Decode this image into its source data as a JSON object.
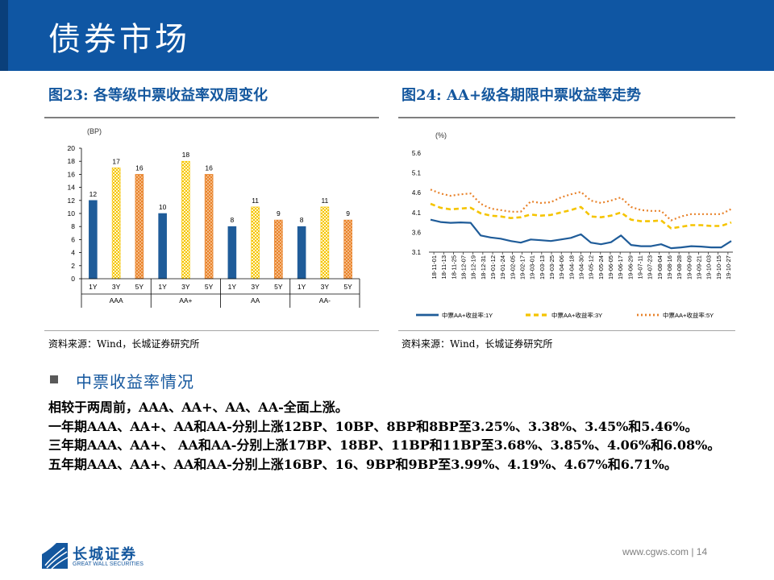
{
  "header": {
    "title": "债券市场"
  },
  "fig23": {
    "title": "图23:  各等级中票收益率双周变化",
    "source": "资料来源：Wind，长城证券研究所"
  },
  "fig24": {
    "title": "图24:   AA+级各期限中票收益率走势",
    "source": "资料来源：Wind，长城证券研究所"
  },
  "section": {
    "heading": "中票收益率情况"
  },
  "body": {
    "p1": "相较于两周前，AAA、AA+、AA、AA-全面上涨。",
    "p2": "一年期AAA、AA+、AA和AA-分别上涨12BP、10BP、8BP和8BP至3.25%、3.38%、3.45%和5.46%。",
    "p3": "三年期AAA、AA+、 AA和AA-分别上涨17BP、18BP、11BP和11BP至3.68%、3.85%、4.06%和6.08%。",
    "p4": "五年期AAA、AA+、AA和AA-分别上涨16BP、16、9BP和9BP至3.99%、4.19%、4.67%和6.71%。"
  },
  "footer": {
    "url": "www.cgws.com  |  14",
    "logo": "长城证券",
    "logo_sub": "GREAT WALL SECURITIES"
  },
  "colors": {
    "brand": "#0f56a3",
    "one_year": "#1f5c99",
    "three_year": "#f5c400",
    "five_year": "#e8822a"
  },
  "chart_data": [
    {
      "type": "bar",
      "unit_label": "(BP)",
      "ylim": [
        0,
        20
      ],
      "yticks": [
        0,
        2,
        4,
        6,
        8,
        10,
        12,
        14,
        16,
        18,
        20
      ],
      "groups": [
        "AAA",
        "AA+",
        "AA",
        "AA-"
      ],
      "categories": [
        "1Y",
        "3Y",
        "5Y"
      ],
      "series": [
        {
          "group": "AAA",
          "values": [
            12,
            17,
            16
          ]
        },
        {
          "group": "AA+",
          "values": [
            10,
            18,
            16
          ]
        },
        {
          "group": "AA",
          "values": [
            8,
            11,
            9
          ]
        },
        {
          "group": "AA-",
          "values": [
            8,
            11,
            9
          ]
        }
      ]
    },
    {
      "type": "line",
      "unit_label": "(%)",
      "ylim": [
        3.1,
        5.6
      ],
      "yticks": [
        "3.1",
        "3.6",
        "4.1",
        "4.6",
        "5.1",
        "5.6"
      ],
      "x": [
        "18-11-01",
        "18-11-13",
        "18-11-25",
        "18-12-07",
        "18-12-19",
        "18-12-31",
        "19-01-12",
        "19-01-24",
        "19-02-05",
        "19-02-17",
        "19-03-01",
        "19-03-13",
        "19-03-25",
        "19-04-06",
        "19-04-18",
        "19-04-30",
        "19-05-12",
        "19-05-24",
        "19-06-05",
        "19-06-17",
        "19-06-29",
        "19-07-11",
        "19-07-23",
        "19-08-04",
        "19-08-16",
        "19-08-28",
        "19-09-09",
        "19-09-21",
        "19-10-03",
        "19-10-15",
        "19-10-27"
      ],
      "series": [
        {
          "name": "中票AA+收益率:1Y",
          "values": [
            3.92,
            3.86,
            3.84,
            3.85,
            3.84,
            3.52,
            3.47,
            3.44,
            3.38,
            3.34,
            3.42,
            3.4,
            3.38,
            3.42,
            3.46,
            3.55,
            3.34,
            3.3,
            3.35,
            3.52,
            3.28,
            3.25,
            3.25,
            3.3,
            3.2,
            3.22,
            3.25,
            3.24,
            3.22,
            3.22,
            3.38
          ]
        },
        {
          "name": "中票AA+收益率:3Y",
          "values": [
            4.32,
            4.22,
            4.18,
            4.2,
            4.22,
            4.08,
            4.02,
            4.0,
            3.96,
            3.98,
            4.05,
            4.02,
            4.04,
            4.1,
            4.16,
            4.24,
            4.0,
            3.98,
            4.02,
            4.1,
            3.92,
            3.88,
            3.88,
            3.9,
            3.7,
            3.74,
            3.78,
            3.78,
            3.76,
            3.76,
            3.85
          ]
        },
        {
          "name": "中票AA+收益率:5Y",
          "values": [
            4.68,
            4.58,
            4.52,
            4.56,
            4.58,
            4.32,
            4.2,
            4.16,
            4.12,
            4.12,
            4.38,
            4.34,
            4.36,
            4.48,
            4.56,
            4.62,
            4.4,
            4.34,
            4.4,
            4.48,
            4.24,
            4.16,
            4.14,
            4.14,
            3.9,
            4.0,
            4.06,
            4.06,
            4.06,
            4.06,
            4.19
          ]
        }
      ]
    }
  ]
}
